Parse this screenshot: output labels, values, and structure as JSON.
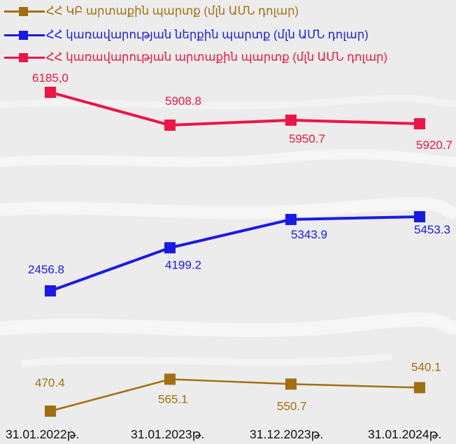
{
  "chart_data": {
    "type": "line",
    "title": "",
    "xlabel": "",
    "ylabel": "",
    "categories": [
      "31.01.2022թ.",
      "31.01.2023թ.",
      "31.12.2023թ.",
      "31.01.2024թ."
    ],
    "series": [
      {
        "name": "ՀՀ ԿԲ արտաքին պարտք (մլն ԱՄՆ դոլար)",
        "color": "#a0700f",
        "values": [
          470.4,
          565.1,
          550.7,
          540.1
        ],
        "labels": [
          "470.4",
          "565.1",
          "550.7",
          "540.1"
        ]
      },
      {
        "name": "ՀՀ կառավարության ներքին պարտք (մլն ԱՄՆ դոլար)",
        "color": "#1a1ae6",
        "values": [
          2456.8,
          4199.2,
          5343.9,
          5453.3
        ],
        "labels": [
          "2456.8",
          "4199.2",
          "5343.9",
          "5453.3"
        ]
      },
      {
        "name": "ՀՀ կառավարության արտաքին պարտք (մլն ԱՄՆ դոլար)",
        "color": "#ee1445",
        "values": [
          6185.0,
          5908.8,
          5950.7,
          5920.7
        ],
        "labels": [
          "6185,0",
          "5908.8",
          "5950.7",
          "5920.7"
        ]
      }
    ],
    "legend_position": "top-left",
    "grid": false
  }
}
